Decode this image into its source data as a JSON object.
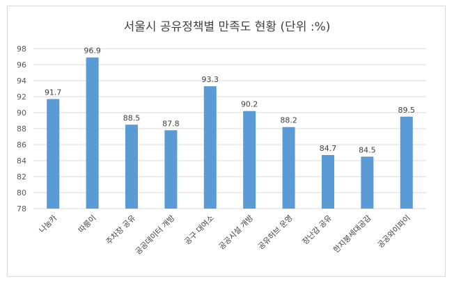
{
  "chart_data": {
    "type": "bar",
    "title": "서울시 공유정책별 만족도 현황 (단위 :%)",
    "categories": [
      "나눔카",
      "따릉이",
      "주차장 공유",
      "공공데이터 개방",
      "공구 대여소",
      "공공시설 개방",
      "공유허브 운영",
      "장난감 공유",
      "한지붕세대공감",
      "공공와이파이"
    ],
    "values": [
      91.7,
      96.9,
      88.5,
      87.8,
      93.3,
      90.2,
      88.2,
      84.7,
      84.5,
      89.5
    ],
    "value_labels": [
      "91.7",
      "96.9",
      "88.5",
      "87.8",
      "93.3",
      "90.2",
      "88.2",
      "84.7",
      "84.5",
      "89.5"
    ],
    "ylim": [
      78,
      98
    ],
    "yticks": [
      "78",
      "80",
      "82",
      "84",
      "86",
      "88",
      "90",
      "92",
      "94",
      "96",
      "98"
    ],
    "grid": true,
    "legend": "none",
    "bar_color": "#5b9bd5",
    "grid_color": "#d9d9d9"
  }
}
